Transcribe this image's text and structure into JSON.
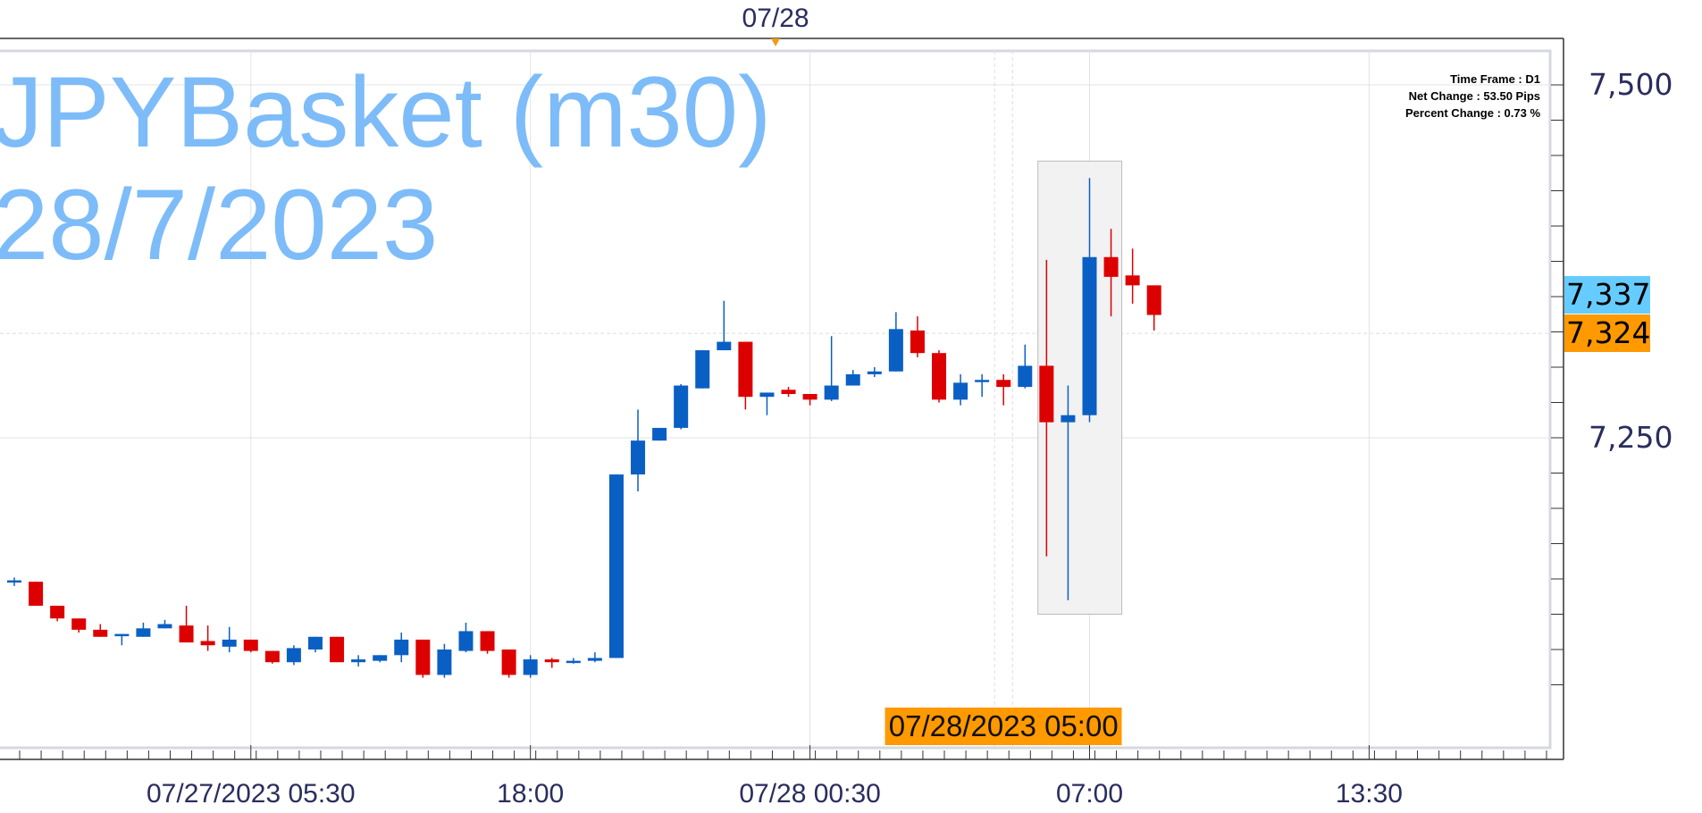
{
  "chart_title": {
    "line1": "JPYBasket (m30)",
    "line2": "28/7/2023"
  },
  "info_panel": {
    "time_frame": "Time Frame : D1",
    "net_change": "Net Change : 53.50 Pips",
    "percent_change": "Percent Change : 0.73 %"
  },
  "top_marker": {
    "label": "07/28",
    "color": "#f39c12"
  },
  "price_tags": [
    {
      "label": "7,337",
      "value": 7337,
      "color": "#66ccff"
    },
    {
      "label": "7,324",
      "value": 7324,
      "color": "#ff9900"
    }
  ],
  "crosshair_time_label": "07/28/2023 05:00",
  "colors": {
    "up": "#0a5fc4",
    "down": "#dd0000",
    "grid": "#e3e3e3",
    "axis": "#333333",
    "highlight": "#f2f2f2"
  },
  "chart_data": {
    "type": "candlestick",
    "y_axis": {
      "min": 7050,
      "max": 7520,
      "major_step": 250,
      "minor_step": 25,
      "tick_labels": [
        {
          "value": 7500,
          "label": "7,500"
        },
        {
          "value": 7250,
          "label": "7,250"
        }
      ]
    },
    "x_tick_labels": [
      {
        "candle": 11,
        "label": "07/27/2023 05:30"
      },
      {
        "candle": 24,
        "label": "18:00"
      },
      {
        "candle": 37,
        "label": "07/28 00:30"
      },
      {
        "candle": 50,
        "label": "07:00"
      },
      {
        "candle": 63,
        "label": "13:30"
      }
    ],
    "crosshair_candle": 46,
    "day_separator_candle": 35.4,
    "highlight": {
      "from_candle": 47.6,
      "to_candle": 51.5,
      "price_low": 7125,
      "price_high": 7446
    },
    "candles": [
      [
        7148,
        7151,
        7145,
        7149
      ],
      [
        7148,
        7148,
        7131,
        7131
      ],
      [
        7131,
        7131,
        7120,
        7122
      ],
      [
        7122,
        7122,
        7112,
        7114
      ],
      [
        7114,
        7118,
        7109,
        7109
      ],
      [
        7110,
        7111,
        7103,
        7111
      ],
      [
        7109,
        7119,
        7109,
        7115
      ],
      [
        7115,
        7121,
        7115,
        7118
      ],
      [
        7117,
        7131,
        7105,
        7105
      ],
      [
        7106,
        7117,
        7099,
        7103
      ],
      [
        7102,
        7116,
        7098,
        7107
      ],
      [
        7107,
        7107,
        7098,
        7099
      ],
      [
        7099,
        7099,
        7090,
        7091
      ],
      [
        7091,
        7103,
        7089,
        7101
      ],
      [
        7100,
        7109,
        7098,
        7109
      ],
      [
        7109,
        7109,
        7091,
        7091
      ],
      [
        7091,
        7096,
        7088,
        7093
      ],
      [
        7092,
        7096,
        7091,
        7096
      ],
      [
        7096,
        7112,
        7091,
        7107
      ],
      [
        7107,
        7107,
        7080,
        7082
      ],
      [
        7082,
        7104,
        7080,
        7100
      ],
      [
        7099,
        7119,
        7098,
        7113
      ],
      [
        7113,
        7113,
        7097,
        7099
      ],
      [
        7100,
        7100,
        7080,
        7082
      ],
      [
        7082,
        7096,
        7080,
        7093
      ],
      [
        7093,
        7094,
        7087,
        7091
      ],
      [
        7091,
        7094,
        7090,
        7092
      ],
      [
        7092,
        7098,
        7091,
        7094
      ],
      [
        7094,
        7224,
        7094,
        7224
      ],
      [
        7224,
        7270,
        7212,
        7248
      ],
      [
        7248,
        7257,
        7248,
        7257
      ],
      [
        7257,
        7288,
        7256,
        7287
      ],
      [
        7285,
        7312,
        7285,
        7312
      ],
      [
        7312,
        7347,
        7312,
        7318
      ],
      [
        7318,
        7318,
        7270,
        7279
      ],
      [
        7279,
        7282,
        7266,
        7282
      ],
      [
        7284,
        7286,
        7279,
        7281
      ],
      [
        7281,
        7281,
        7273,
        7277
      ],
      [
        7277,
        7322,
        7276,
        7287
      ],
      [
        7287,
        7298,
        7287,
        7295
      ],
      [
        7295,
        7300,
        7293,
        7297
      ],
      [
        7297,
        7339,
        7297,
        7327
      ],
      [
        7326,
        7336,
        7307,
        7310
      ],
      [
        7310,
        7312,
        7275,
        7277
      ],
      [
        7277,
        7295,
        7273,
        7289
      ],
      [
        7290,
        7295,
        7279,
        7291
      ],
      [
        7291,
        7295,
        7273,
        7286
      ],
      [
        7286,
        7316,
        7285,
        7301
      ],
      [
        7301,
        7376,
        7166,
        7261
      ],
      [
        7261,
        7287,
        7135,
        7266
      ],
      [
        7266,
        7434,
        7261,
        7378
      ],
      [
        7378,
        7398,
        7336,
        7364
      ],
      [
        7365,
        7384,
        7345,
        7358
      ],
      [
        7358,
        7358,
        7326,
        7337
      ]
    ]
  }
}
